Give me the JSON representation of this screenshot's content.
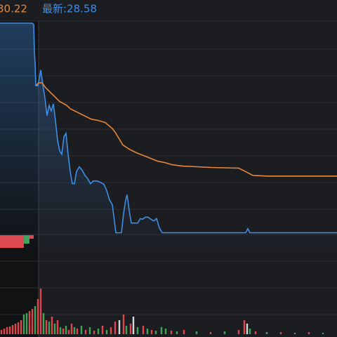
{
  "chart_data": {
    "type": "line",
    "header": {
      "average": "30.22",
      "latest": "最新:28.58"
    },
    "xlim": [
      0,
      240
    ],
    "ylim": [
      28.0,
      34.71
    ],
    "series": [
      {
        "color": "#3d8ee8",
        "x": [
          0,
          23,
          24,
          24.5,
          25,
          25.5,
          27,
          29,
          30.5,
          32,
          33.5,
          35,
          36.5,
          38,
          39.5,
          41,
          42.5,
          44,
          45.5,
          47,
          48.5,
          50,
          51.5,
          53,
          54.5,
          56.5,
          58.5,
          60.5,
          62.5,
          64.5,
          66.5,
          69,
          71.5,
          74,
          76,
          78,
          80,
          81.5,
          82.5,
          86.5,
          88,
          89.5,
          90.5,
          92,
          93.5,
          95,
          98,
          100,
          101.5,
          103.5,
          105.5,
          107.5,
          109.5,
          111.5,
          113.5,
          115.5,
          175,
          176.5,
          178,
          240
        ],
        "values": [
          34.65,
          34.65,
          34.61,
          33.82,
          33.49,
          32.84,
          32.84,
          33.29,
          32.88,
          32.48,
          31.97,
          32.27,
          32.11,
          32.31,
          31.83,
          31.26,
          30.95,
          30.85,
          31.36,
          31.46,
          30.85,
          30.35,
          30.0,
          30.0,
          30.35,
          30.49,
          30.39,
          30.24,
          30.14,
          30.0,
          30.08,
          30.08,
          30.04,
          29.98,
          29.8,
          29.53,
          29.39,
          28.92,
          28.58,
          28.58,
          29.13,
          29.53,
          29.68,
          29.23,
          28.86,
          28.86,
          28.86,
          28.99,
          28.97,
          29.03,
          29.03,
          28.97,
          28.92,
          28.99,
          28.72,
          28.58,
          28.58,
          28.7,
          28.58,
          28.58
        ]
      },
      {
        "color": "#e8873a",
        "x": [
          25.5,
          27.5,
          30,
          32.5,
          37.5,
          42.5,
          47.5,
          50,
          55,
          60,
          65,
          70,
          75,
          80,
          82.5,
          87.5,
          92.5,
          97.5,
          102.5,
          107.5,
          112.5,
          117.5,
          122.5,
          130,
          140,
          150,
          170,
          175,
          180,
          190,
          240
        ],
        "values": [
          32.84,
          32.92,
          32.92,
          32.78,
          32.58,
          32.38,
          32.27,
          32.17,
          32.07,
          31.97,
          31.87,
          31.83,
          31.77,
          31.6,
          31.46,
          31.12,
          30.99,
          30.89,
          30.81,
          30.73,
          30.65,
          30.61,
          30.55,
          30.51,
          30.49,
          30.47,
          30.45,
          30.35,
          30.24,
          30.22,
          30.22
        ]
      }
    ],
    "volume": {
      "ylim": [
        0,
        70
      ],
      "palette": {
        "r": "#e0474c",
        "g": "#3fa35a",
        "w": "#d8d8d8"
      },
      "x": [
        1,
        3,
        5,
        7,
        9,
        11,
        13,
        15,
        17,
        19,
        21,
        23,
        25,
        27,
        29,
        31,
        33,
        35,
        37,
        39,
        41,
        43,
        45,
        47,
        49,
        51,
        53,
        55,
        58,
        61,
        64,
        67,
        70,
        73,
        76,
        79,
        82,
        85,
        88,
        90,
        93,
        95,
        98,
        102,
        105,
        108,
        111,
        115,
        118,
        122,
        126,
        131,
        140,
        150,
        160,
        170,
        174,
        176,
        178,
        182,
        190,
        200,
        210,
        220,
        230
      ],
      "values": [
        6,
        8,
        10,
        11,
        13,
        15,
        17,
        20,
        28,
        30,
        33,
        36,
        40,
        50,
        65,
        30,
        20,
        18,
        25,
        15,
        20,
        10,
        8,
        12,
        6,
        15,
        10,
        8,
        12,
        6,
        10,
        5,
        8,
        12,
        6,
        10,
        18,
        20,
        28,
        12,
        15,
        25,
        10,
        12,
        8,
        6,
        5,
        10,
        8,
        5,
        4,
        6,
        4,
        3,
        4,
        6,
        20,
        15,
        8,
        4,
        3,
        3,
        2,
        3,
        2
      ],
      "colors": [
        "r",
        "r",
        "r",
        "r",
        "r",
        "r",
        "r",
        "r",
        "g",
        "g",
        "r",
        "r",
        "g",
        "r",
        "r",
        "g",
        "r",
        "g",
        "r",
        "g",
        "r",
        "g",
        "r",
        "g",
        "r",
        "r",
        "g",
        "r",
        "g",
        "r",
        "g",
        "r",
        "g",
        "r",
        "g",
        "r",
        "r",
        "w",
        "r",
        "g",
        "r",
        "w",
        "g",
        "r",
        "g",
        "r",
        "g",
        "g",
        "g",
        "r",
        "g",
        "r",
        "g",
        "r",
        "g",
        "r",
        "r",
        "w",
        "g",
        "r",
        "g",
        "r",
        "g",
        "r",
        "g"
      ]
    }
  }
}
